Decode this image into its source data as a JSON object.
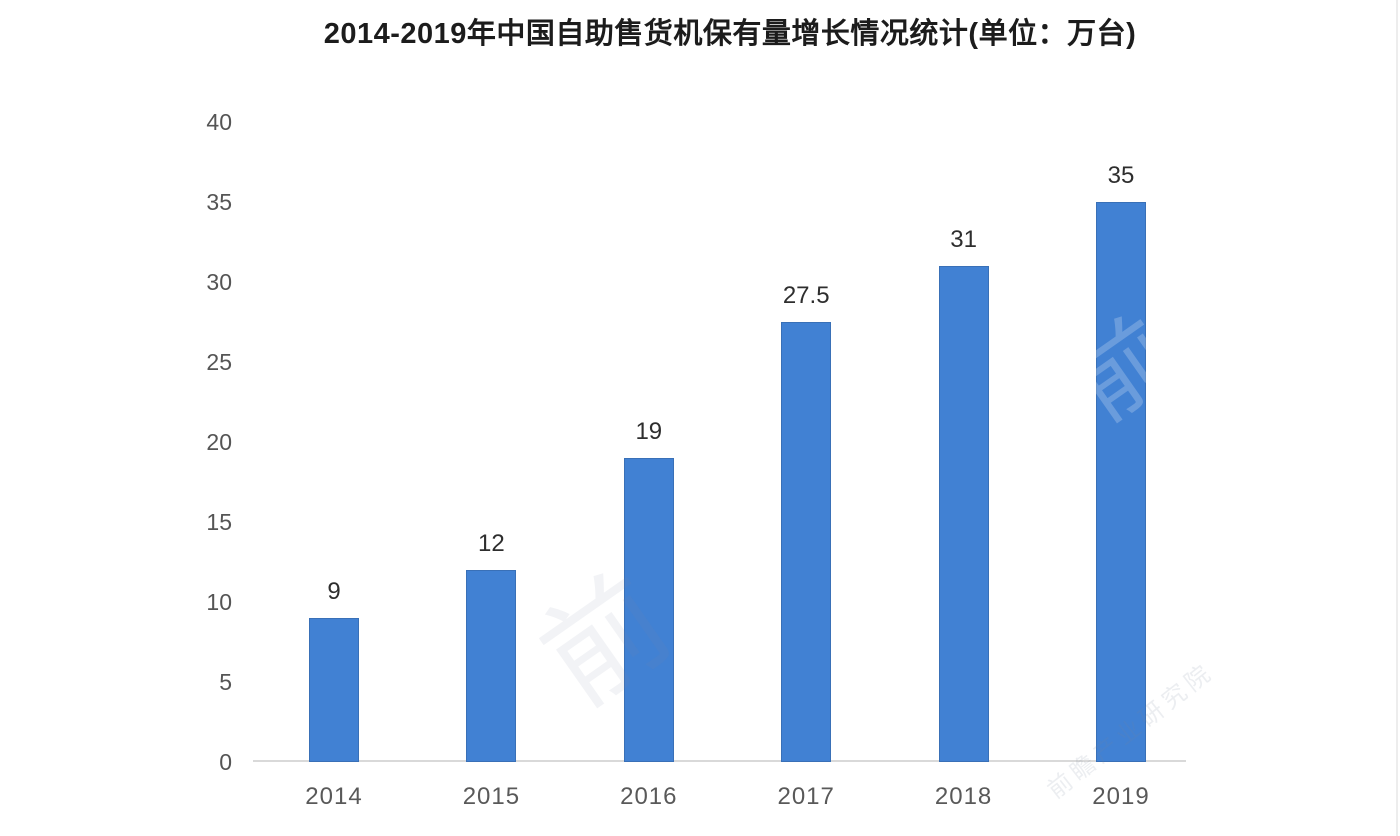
{
  "title": "2014-2019年中国自助售货机保有量增长情况统计(单位：万台)",
  "colors": {
    "bar": "#4181d3"
  },
  "watermarks": {
    "ghost_char": "前",
    "brand_text": "前瞻产业研究院"
  },
  "chart_data": {
    "type": "bar",
    "title": "2014-2019年中国自助售货机保有量增长情况统计(单位：万台)",
    "unit": "万台",
    "categories": [
      "2014",
      "2015",
      "2016",
      "2017",
      "2018",
      "2019"
    ],
    "values": [
      9,
      12,
      19,
      27.5,
      31,
      35
    ],
    "value_labels": [
      "9",
      "12",
      "19",
      "27.5",
      "31",
      "35"
    ],
    "y_ticks": [
      0,
      5,
      10,
      15,
      20,
      25,
      30,
      35,
      40
    ],
    "ylim": [
      0,
      40
    ],
    "xlabel": "",
    "ylabel": "",
    "grid": false,
    "legend": false
  }
}
